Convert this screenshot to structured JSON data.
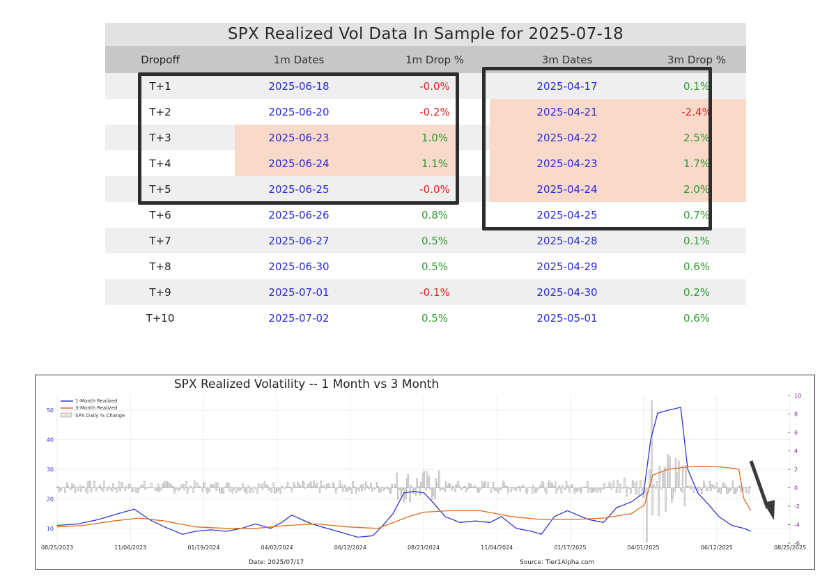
{
  "table": {
    "title": "SPX Realized Vol Data In Sample for 2025-07-18",
    "headers": [
      "Dropoff",
      "1m Dates",
      "1m Drop %",
      "3m Dates",
      "3m Drop %"
    ],
    "rows": [
      {
        "dropoff": "T+1",
        "d1": "2025-06-18",
        "p1": "-0.0%",
        "d3": "2025-04-17",
        "p3": "0.1%"
      },
      {
        "dropoff": "T+2",
        "d1": "2025-06-20",
        "p1": "-0.2%",
        "d3": "2025-04-21",
        "p3": "-2.4%"
      },
      {
        "dropoff": "T+3",
        "d1": "2025-06-23",
        "p1": "1.0%",
        "d3": "2025-04-22",
        "p3": "2.5%"
      },
      {
        "dropoff": "T+4",
        "d1": "2025-06-24",
        "p1": "1.1%",
        "d3": "2025-04-23",
        "p3": "1.7%"
      },
      {
        "dropoff": "T+5",
        "d1": "2025-06-25",
        "p1": "-0.0%",
        "d3": "2025-04-24",
        "p3": "2.0%"
      },
      {
        "dropoff": "T+6",
        "d1": "2025-06-26",
        "p1": "0.8%",
        "d3": "2025-04-25",
        "p3": "0.7%"
      },
      {
        "dropoff": "T+7",
        "d1": "2025-06-27",
        "p1": "0.5%",
        "d3": "2025-04-28",
        "p3": "0.1%"
      },
      {
        "dropoff": "T+8",
        "d1": "2025-06-30",
        "p1": "0.5%",
        "d3": "2025-04-29",
        "p3": "0.6%"
      },
      {
        "dropoff": "T+9",
        "d1": "2025-07-01",
        "p1": "-0.1%",
        "d3": "2025-04-30",
        "p3": "0.2%"
      },
      {
        "dropoff": "T+10",
        "d1": "2025-07-02",
        "p1": "0.5%",
        "d3": "2025-05-01",
        "p3": "0.6%"
      }
    ],
    "colors": {
      "positive": "#2f9a2f",
      "negative": "#e02424",
      "date": "#2b2bd4",
      "highlight": "#f8d9ca"
    }
  },
  "chart_data": {
    "type": "line",
    "title": "SPX Realized Volatility -- 1 Month vs 3 Month",
    "x_ticks": [
      "08/25/2023",
      "11/06/2023",
      "01/19/2024",
      "04/02/2024",
      "06/12/2024",
      "08/23/2024",
      "11/04/2024",
      "01/17/2025",
      "04/01/2025",
      "06/12/2025",
      "08/25/2025"
    ],
    "xlim": [
      "2023-08-25",
      "2025-08-25"
    ],
    "ylim_left": [
      5,
      55
    ],
    "y_ticks_left": [
      "10",
      "20",
      "30",
      "40",
      "50"
    ],
    "ylim_right": [
      -6,
      10
    ],
    "y_ticks_right": [
      "10",
      "8",
      "6",
      "4",
      "2",
      "0",
      "-2",
      "-4",
      "-6"
    ],
    "legend": [
      "1-Month Realized",
      "3-Month Realized",
      "SPX Daily % Change"
    ],
    "legend_position": "top-left",
    "footer_date": "Date: 2025/07/17",
    "footer_source": "Source: Tier1Alpha.com",
    "series": [
      {
        "name": "1-Month Realized",
        "color": "#3333cc",
        "points": [
          [
            "2023-08-25",
            11
          ],
          [
            "2023-09-15",
            11.5
          ],
          [
            "2023-10-05",
            13
          ],
          [
            "2023-10-25",
            15
          ],
          [
            "2023-11-10",
            16.5
          ],
          [
            "2023-11-25",
            13
          ],
          [
            "2023-12-10",
            10.5
          ],
          [
            "2023-12-28",
            8
          ],
          [
            "2024-01-10",
            9
          ],
          [
            "2024-01-25",
            9.5
          ],
          [
            "2024-02-10",
            9
          ],
          [
            "2024-02-25",
            10
          ],
          [
            "2024-03-10",
            11.5
          ],
          [
            "2024-03-25",
            10
          ],
          [
            "2024-04-05",
            12
          ],
          [
            "2024-04-15",
            14.5
          ],
          [
            "2024-04-25",
            13
          ],
          [
            "2024-05-05",
            11.5
          ],
          [
            "2024-05-20",
            10
          ],
          [
            "2024-06-05",
            8.5
          ],
          [
            "2024-06-20",
            7
          ],
          [
            "2024-07-05",
            7.5
          ],
          [
            "2024-07-15",
            11
          ],
          [
            "2024-07-25",
            15
          ],
          [
            "2024-08-05",
            22
          ],
          [
            "2024-08-15",
            22.5
          ],
          [
            "2024-08-25",
            22
          ],
          [
            "2024-09-05",
            18
          ],
          [
            "2024-09-15",
            14
          ],
          [
            "2024-09-30",
            12
          ],
          [
            "2024-10-15",
            12.5
          ],
          [
            "2024-10-30",
            12
          ],
          [
            "2024-11-10",
            14
          ],
          [
            "2024-11-25",
            10
          ],
          [
            "2024-12-10",
            9
          ],
          [
            "2024-12-20",
            8
          ],
          [
            "2025-01-02",
            14
          ],
          [
            "2025-01-15",
            16
          ],
          [
            "2025-02-05",
            13
          ],
          [
            "2025-02-20",
            12
          ],
          [
            "2025-03-05",
            17
          ],
          [
            "2025-03-20",
            19
          ],
          [
            "2025-04-01",
            22
          ],
          [
            "2025-04-08",
            40
          ],
          [
            "2025-04-15",
            49
          ],
          [
            "2025-04-25",
            50
          ],
          [
            "2025-05-08",
            51
          ],
          [
            "2025-05-15",
            30
          ],
          [
            "2025-05-25",
            22
          ],
          [
            "2025-06-05",
            18
          ],
          [
            "2025-06-15",
            14
          ],
          [
            "2025-06-28",
            11
          ],
          [
            "2025-07-10",
            10
          ],
          [
            "2025-07-17",
            9
          ]
        ]
      },
      {
        "name": "3-Month Realized",
        "color": "#e06a1c",
        "points": [
          [
            "2023-08-25",
            10.5
          ],
          [
            "2023-09-20",
            11
          ],
          [
            "2023-10-20",
            12.5
          ],
          [
            "2023-11-15",
            13.5
          ],
          [
            "2023-12-10",
            12.5
          ],
          [
            "2024-01-10",
            10.5
          ],
          [
            "2024-02-10",
            10
          ],
          [
            "2024-03-10",
            10
          ],
          [
            "2024-04-10",
            11
          ],
          [
            "2024-05-10",
            11.5
          ],
          [
            "2024-06-10",
            10.5
          ],
          [
            "2024-07-10",
            10
          ],
          [
            "2024-08-10",
            14
          ],
          [
            "2024-08-25",
            15.5
          ],
          [
            "2024-09-20",
            16
          ],
          [
            "2024-10-20",
            16
          ],
          [
            "2024-11-20",
            14
          ],
          [
            "2024-12-20",
            13
          ],
          [
            "2025-01-20",
            13
          ],
          [
            "2025-02-20",
            13.5
          ],
          [
            "2025-03-20",
            15
          ],
          [
            "2025-04-02",
            18
          ],
          [
            "2025-04-10",
            28
          ],
          [
            "2025-04-25",
            30
          ],
          [
            "2025-05-20",
            31
          ],
          [
            "2025-06-10",
            31
          ],
          [
            "2025-06-25",
            30.5
          ],
          [
            "2025-07-05",
            30
          ],
          [
            "2025-07-10",
            20
          ],
          [
            "2025-07-17",
            16
          ]
        ]
      }
    ]
  }
}
